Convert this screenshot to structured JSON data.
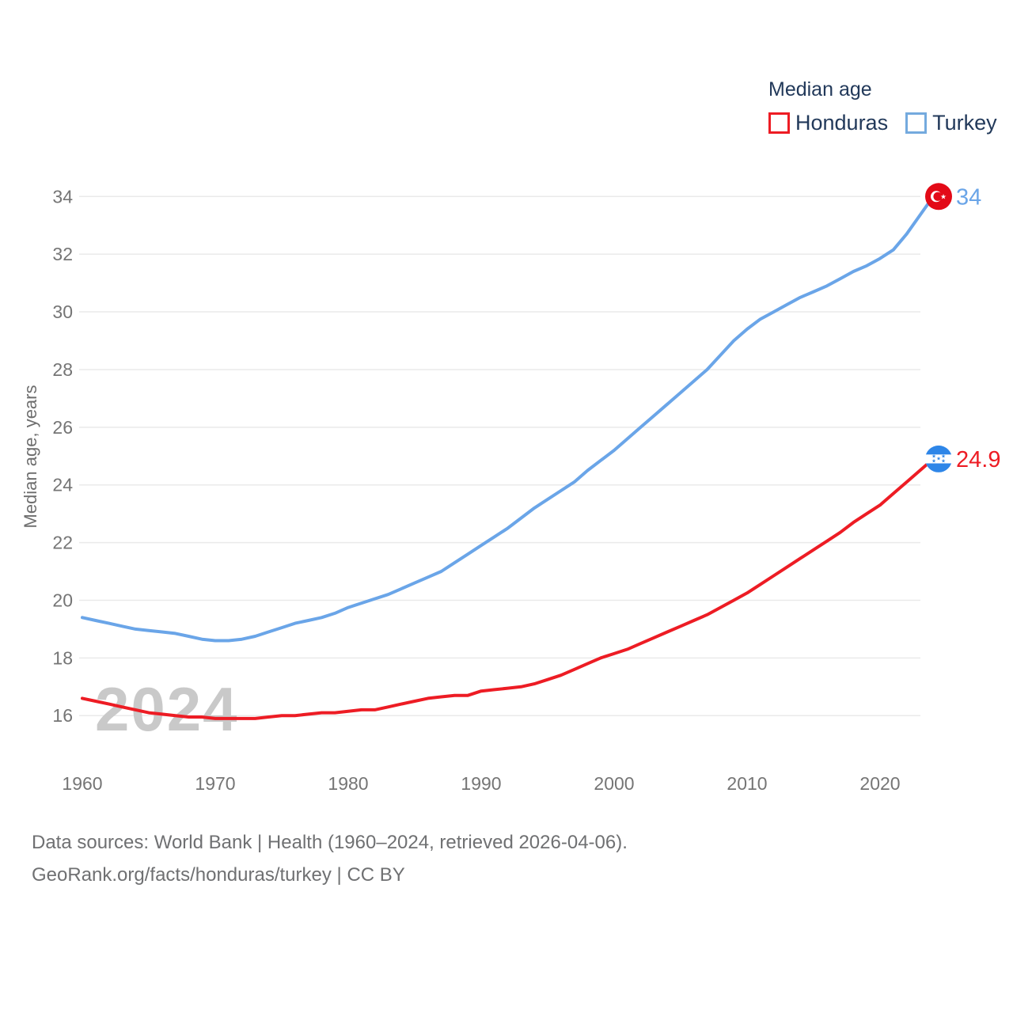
{
  "legend": {
    "title": "Median age",
    "items": [
      {
        "label": "Honduras",
        "color": "#ed1c24"
      },
      {
        "label": "Turkey",
        "color": "#74aade"
      }
    ]
  },
  "y_axis": {
    "title": "Median age, years",
    "ticks": [
      16,
      18,
      20,
      22,
      24,
      26,
      28,
      30,
      32,
      34
    ]
  },
  "x_axis": {
    "ticks": [
      1960,
      1970,
      1980,
      1990,
      2000,
      2010,
      2020
    ]
  },
  "watermark": "2024",
  "footer": {
    "line1": "Data sources: World Bank | Health (1960–2024, retrieved 2026-04-06).",
    "line2": "GeoRank.org/facts/honduras/turkey | CC BY"
  },
  "chart_data": {
    "type": "line",
    "title": "Median age",
    "xlabel": "",
    "ylabel": "Median age, years",
    "ylim": [
      15,
      35
    ],
    "grid": "horizontal",
    "legend_position": "top-right",
    "flag_colors": {
      "turkey_red": "#e30a17",
      "honduras_blue": "#2e86e8",
      "white": "#ffffff"
    },
    "years": [
      1960,
      1961,
      1962,
      1963,
      1964,
      1965,
      1966,
      1967,
      1968,
      1969,
      1970,
      1971,
      1972,
      1973,
      1974,
      1975,
      1976,
      1977,
      1978,
      1979,
      1980,
      1981,
      1982,
      1983,
      1984,
      1985,
      1986,
      1987,
      1988,
      1989,
      1990,
      1991,
      1992,
      1993,
      1994,
      1995,
      1996,
      1997,
      1998,
      1999,
      2000,
      2001,
      2002,
      2003,
      2004,
      2005,
      2006,
      2007,
      2008,
      2009,
      2010,
      2011,
      2012,
      2013,
      2014,
      2015,
      2016,
      2017,
      2018,
      2019,
      2020,
      2021,
      2022,
      2023,
      2024
    ],
    "series": [
      {
        "name": "Turkey",
        "color": "#6aa5e8",
        "end_label": "34",
        "end_value": 34,
        "marker": "turkey-flag",
        "values": [
          19.4,
          19.3,
          19.2,
          19.1,
          19.0,
          18.95,
          18.9,
          18.85,
          18.75,
          18.65,
          18.6,
          18.6,
          18.65,
          18.75,
          18.9,
          19.05,
          19.2,
          19.3,
          19.4,
          19.55,
          19.75,
          19.9,
          20.05,
          20.2,
          20.4,
          20.6,
          20.8,
          21.0,
          21.3,
          21.6,
          21.9,
          22.2,
          22.5,
          22.85,
          23.2,
          23.5,
          23.8,
          24.1,
          24.5,
          24.85,
          25.2,
          25.6,
          26.0,
          26.4,
          26.8,
          27.2,
          27.6,
          28.0,
          28.5,
          29.0,
          29.4,
          29.75,
          30.0,
          30.25,
          30.5,
          30.7,
          30.9,
          31.15,
          31.4,
          31.6,
          31.85,
          32.15,
          32.7,
          33.35,
          34.0
        ]
      },
      {
        "name": "Honduras",
        "color": "#ed1c24",
        "end_label": "24.9",
        "end_value": 24.9,
        "marker": "honduras-flag",
        "values": [
          16.6,
          16.5,
          16.4,
          16.3,
          16.2,
          16.1,
          16.05,
          16.0,
          15.95,
          15.95,
          15.9,
          15.9,
          15.9,
          15.9,
          15.95,
          16.0,
          16.0,
          16.05,
          16.1,
          16.1,
          16.15,
          16.2,
          16.2,
          16.3,
          16.4,
          16.5,
          16.6,
          16.65,
          16.7,
          16.7,
          16.85,
          16.9,
          16.95,
          17.0,
          17.1,
          17.25,
          17.4,
          17.6,
          17.8,
          18.0,
          18.15,
          18.3,
          18.5,
          18.7,
          18.9,
          19.1,
          19.3,
          19.5,
          19.75,
          20.0,
          20.25,
          20.55,
          20.85,
          21.15,
          21.45,
          21.75,
          22.05,
          22.35,
          22.7,
          23.0,
          23.3,
          23.7,
          24.1,
          24.5,
          24.9
        ]
      }
    ]
  }
}
